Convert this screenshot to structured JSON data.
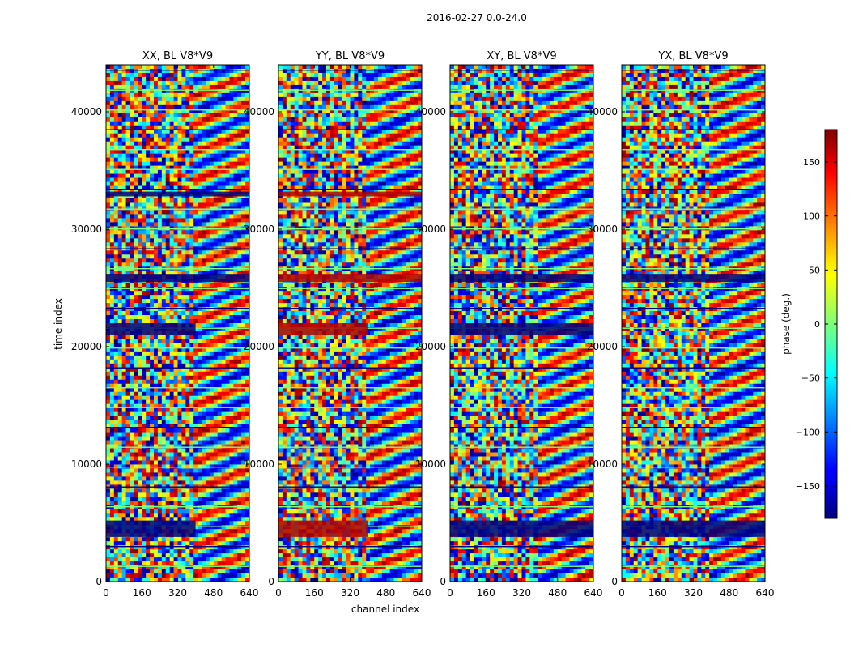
{
  "figure": {
    "suptitle": "2016-02-27 0.0-24.0",
    "xlabel": "channel index",
    "ylabel": "time index"
  },
  "chart_data": {
    "type": "heatmap",
    "title": "2016-02-27 0.0-24.0",
    "xlabel": "channel index",
    "ylabel": "time index",
    "xlim": [
      0,
      640
    ],
    "ylim": [
      0,
      44000
    ],
    "x_ticks": [
      0,
      160,
      320,
      480,
      640
    ],
    "y_ticks": [
      0,
      10000,
      20000,
      30000,
      40000
    ],
    "panels": [
      {
        "title": "XX, BL V8*V9",
        "blue_bands": [
          {
            "t0": 21000,
            "t1": 22000,
            "c0": 0,
            "c1": 400
          },
          {
            "t0": 32800,
            "t1": 33200,
            "c0": 0,
            "c1": 640
          },
          {
            "t0": 25500,
            "t1": 26200,
            "c0": 0,
            "c1": 640
          },
          {
            "t0": 3800,
            "t1": 5200,
            "c0": 0,
            "c1": 400
          }
        ],
        "fringe_start_channel": 380
      },
      {
        "title": "YY, BL V8*V9",
        "red_bands": [
          {
            "t0": 21000,
            "t1": 22000,
            "c0": 0,
            "c1": 400
          },
          {
            "t0": 32800,
            "t1": 33200,
            "c0": 0,
            "c1": 640
          },
          {
            "t0": 25500,
            "t1": 26200,
            "c0": 0,
            "c1": 640
          },
          {
            "t0": 3800,
            "t1": 5200,
            "c0": 0,
            "c1": 400
          }
        ],
        "fringe_start_channel": 380
      },
      {
        "title": "XY, BL V8*V9",
        "blue_bands": [
          {
            "t0": 21000,
            "t1": 22000,
            "c0": 0,
            "c1": 640
          },
          {
            "t0": 25500,
            "t1": 26200,
            "c0": 0,
            "c1": 640
          },
          {
            "t0": 3800,
            "t1": 5200,
            "c0": 0,
            "c1": 640
          }
        ],
        "fringe_start_channel": 380
      },
      {
        "title": "YX, BL V8*V9",
        "blue_bands": [
          {
            "t0": 25500,
            "t1": 26200,
            "c0": 0,
            "c1": 640
          },
          {
            "t0": 3800,
            "t1": 5200,
            "c0": 0,
            "c1": 640
          }
        ],
        "fringe_start_channel": 380
      }
    ],
    "colorbar": {
      "label": "phase (deg.)",
      "vmin": -180,
      "vmax": 180,
      "ticks": [
        -150,
        -100,
        -50,
        0,
        50,
        100,
        150
      ],
      "colormap": "jet"
    }
  }
}
